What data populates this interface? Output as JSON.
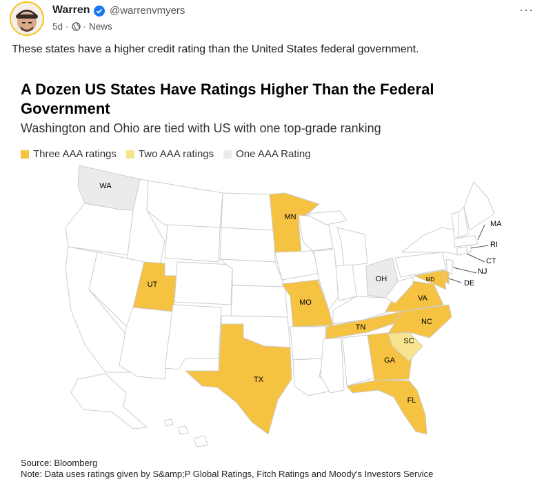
{
  "post": {
    "author": "Warren",
    "handle": "@warrenvmyers",
    "age": "5d",
    "dot": "·",
    "category": "News",
    "more": "···",
    "text": "These states have a higher credit rating than the United States federal government."
  },
  "chart": {
    "title": "A Dozen US States Have Ratings Higher Than the Federal Government",
    "subtitle": "Washington and Ohio are tied with US with one top-grade ranking",
    "legend": [
      {
        "label": "Three AAA ratings",
        "color": "#f5c242"
      },
      {
        "label": "Two AAA ratings",
        "color": "#f8e48f"
      },
      {
        "label": "One AAA Rating",
        "color": "#ebebeb"
      }
    ],
    "source": "Source: Bloomberg",
    "note": "Note: Data uses ratings given by S&amp;P Global Ratings, Fitch Ratings and Moody's Investors Service"
  },
  "colors": {
    "three": "#f5c242",
    "two": "#f8e48f",
    "one": "#ebebeb",
    "none": "#ffffff",
    "border": "#cccccc",
    "verified": "#1877f2"
  },
  "states": [
    {
      "code": "WA",
      "category": "one"
    },
    {
      "code": "MN",
      "category": "three"
    },
    {
      "code": "UT",
      "category": "three"
    },
    {
      "code": "MO",
      "category": "three"
    },
    {
      "code": "TX",
      "category": "three"
    },
    {
      "code": "TN",
      "category": "three"
    },
    {
      "code": "OH",
      "category": "one"
    },
    {
      "code": "VA",
      "category": "three"
    },
    {
      "code": "MD",
      "category": "three"
    },
    {
      "code": "NC",
      "category": "three"
    },
    {
      "code": "SC",
      "category": "two"
    },
    {
      "code": "GA",
      "category": "three"
    },
    {
      "code": "FL",
      "category": "three"
    },
    {
      "code": "DE",
      "category": "three"
    },
    {
      "code": "MA",
      "category": "none"
    },
    {
      "code": "RI",
      "category": "none"
    },
    {
      "code": "CT",
      "category": "none"
    },
    {
      "code": "NJ",
      "category": "none"
    }
  ]
}
